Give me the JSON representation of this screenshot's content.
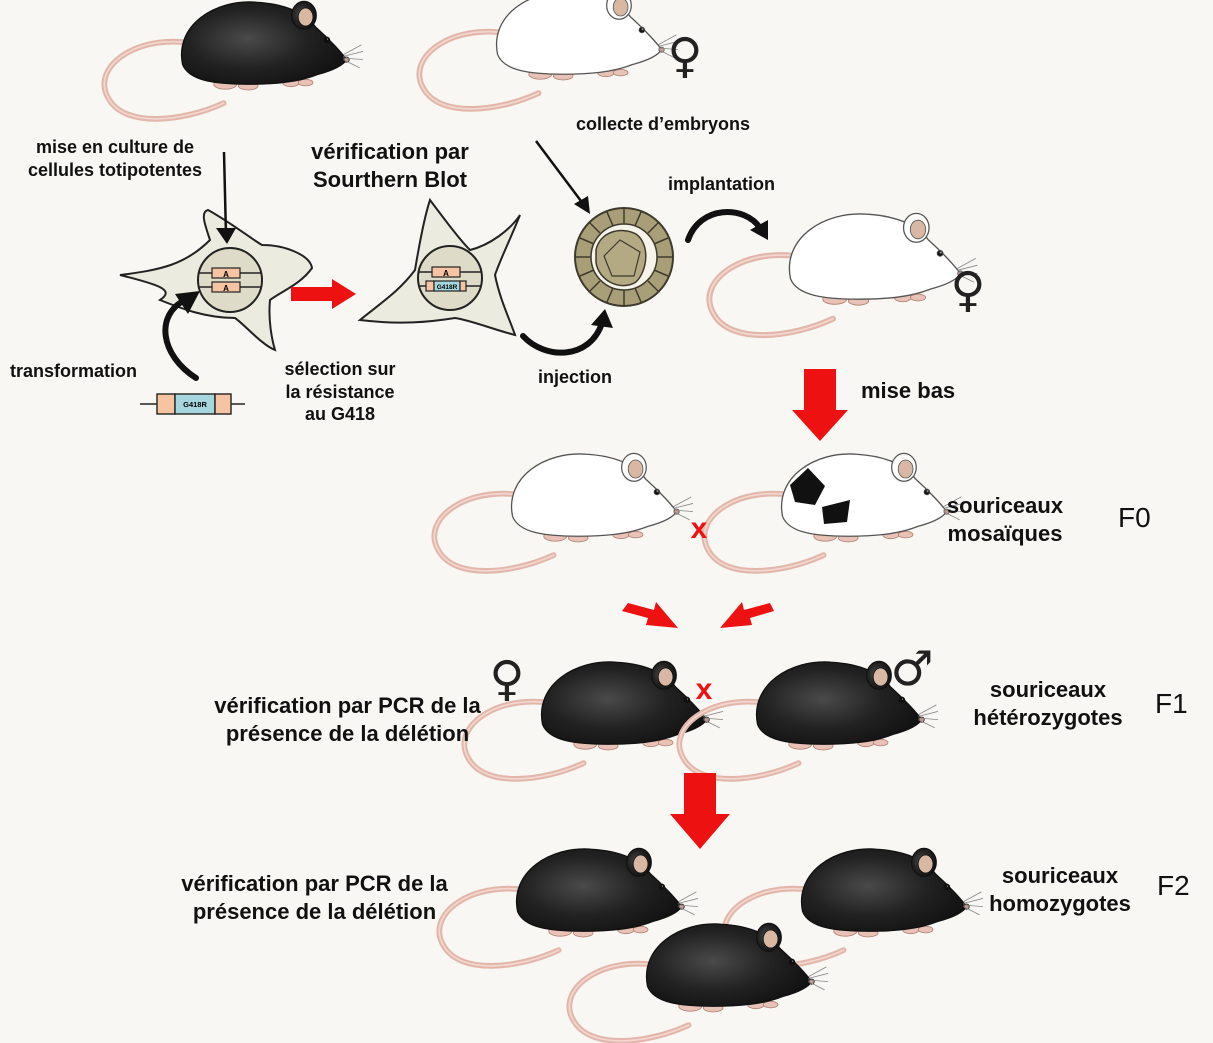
{
  "labels": {
    "culture": [
      "mise en culture de",
      "cellules totipotentes"
    ],
    "transformation": "transformation",
    "southern": [
      "vérification par",
      "Sourthern Blot"
    ],
    "selection": [
      "sélection sur",
      "la résistance",
      "au G418"
    ],
    "collecte": "collecte d’embryons",
    "implantation": "implantation",
    "injection": "injection",
    "mise_bas": "mise bas",
    "mosaiques": [
      "souriceaux",
      "mosaïques"
    ],
    "heterozygotes": [
      "souriceaux",
      "hétérozygotes"
    ],
    "homozygotes": [
      "souriceaux",
      "homozygotes"
    ],
    "pcr_f1": [
      "vérification par PCR de la",
      "présence de la délétion"
    ],
    "pcr_f2": [
      "vérification par PCR de la",
      "présence de la délétion"
    ]
  },
  "generations": {
    "f0": "F0",
    "f1": "F1",
    "f2": "F2"
  },
  "cross_symbol": "x",
  "sex_symbols": {
    "female": "♀",
    "male": "♂"
  },
  "construct": {
    "gene": "A",
    "marker": "G418R"
  },
  "colors": {
    "background": "#f8f7f4",
    "red_arrow": "#ee1111",
    "black_mouse": "#1c1c1c",
    "white_mouse": "#ffffff",
    "tail": "#e2b7aa",
    "cell": "#ecebdf",
    "gene_box": "#f6c4a2",
    "marker_box": "#a6d7df",
    "embryo": "#a89f78"
  }
}
